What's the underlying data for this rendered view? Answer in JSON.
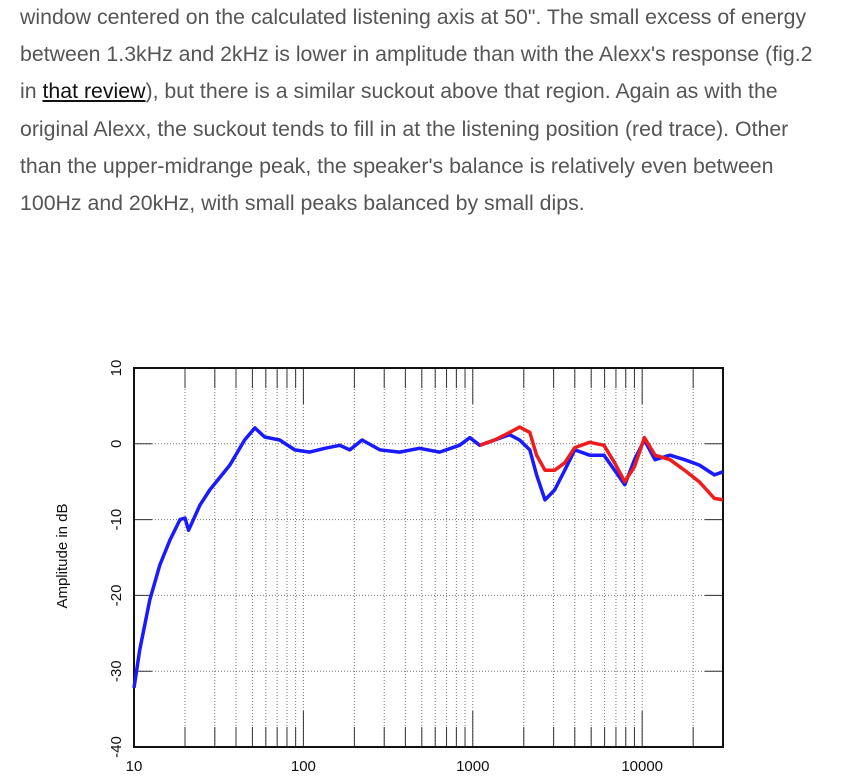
{
  "article": {
    "before": "window centered on the calculated listening axis at 50\". The small excess of energy between 1.3kHz and 2kHz is lower in amplitude than with the Alexx's response (fig.2 in ",
    "link": "that review",
    "after": "), but there is a similar suckout above that region. Again as with the original Alexx, the suckout tends to fill in at the listening position (red trace). Other than the upper-midrange peak, the speaker's balance is relatively even between 100Hz and 20kHz, with small peaks balanced by small dips."
  },
  "chart_data": {
    "type": "line",
    "ylabel": "Amplitude in dB",
    "xscale": "log",
    "grid": true,
    "minor_grid": true,
    "xlim": [
      10,
      30000
    ],
    "ylim": [
      -40,
      10
    ],
    "xticks": [
      10,
      100,
      1000,
      10000
    ],
    "yticks": [
      -40,
      -30,
      -20,
      -10,
      0,
      10
    ],
    "x": [
      10,
      10.8,
      12.4,
      14.2,
      16.3,
      18.7,
      20,
      21,
      24.5,
      28,
      36.8,
      45,
      51.7,
      59,
      72.5,
      89,
      109,
      134,
      164,
      188,
      222,
      283,
      370,
      484,
      637,
      835,
      960,
      1100,
      1345,
      1650,
      1890,
      2170,
      2380,
      2670,
      3040,
      3490,
      4000,
      4900,
      5950,
      6870,
      7900,
      9010,
      10300,
      11900,
      14600,
      17800,
      21700,
      26700,
      30000
    ],
    "series": [
      {
        "name": "Blue trace",
        "color": "#1a1aff",
        "values": [
          -32.2,
          -27.2,
          -20.6,
          -16,
          -12.7,
          -10,
          -9.8,
          -11.4,
          -8.1,
          -6.1,
          -2.8,
          0.5,
          2.1,
          0.9,
          0.5,
          -0.8,
          -1.1,
          -0.6,
          -0.2,
          -0.8,
          0.5,
          -0.8,
          -1.1,
          -0.6,
          -1.1,
          -0.2,
          0.8,
          -0.2,
          0.5,
          1.2,
          0.5,
          -0.8,
          -4.1,
          -7.4,
          -6.1,
          -3.5,
          -0.8,
          -1.5,
          -1.5,
          -3.5,
          -5.4,
          -2.1,
          0.5,
          -2.1,
          -1.5,
          -2.1,
          -2.8,
          -4.1,
          -3.7
        ]
      },
      {
        "name": "Red trace",
        "color": "#ee1c1c",
        "values": [
          null,
          null,
          null,
          null,
          null,
          null,
          null,
          null,
          null,
          null,
          null,
          null,
          null,
          null,
          null,
          null,
          null,
          null,
          null,
          null,
          null,
          null,
          null,
          null,
          null,
          null,
          null,
          -0.2,
          0.5,
          1.5,
          2.2,
          1.5,
          -1.5,
          -3.5,
          -3.5,
          -2.5,
          -0.5,
          0.2,
          -0.2,
          -2.5,
          -5,
          -3,
          0.8,
          -1.5,
          -2.1,
          -3.5,
          -5,
          -7.2,
          -7.4
        ]
      }
    ]
  }
}
